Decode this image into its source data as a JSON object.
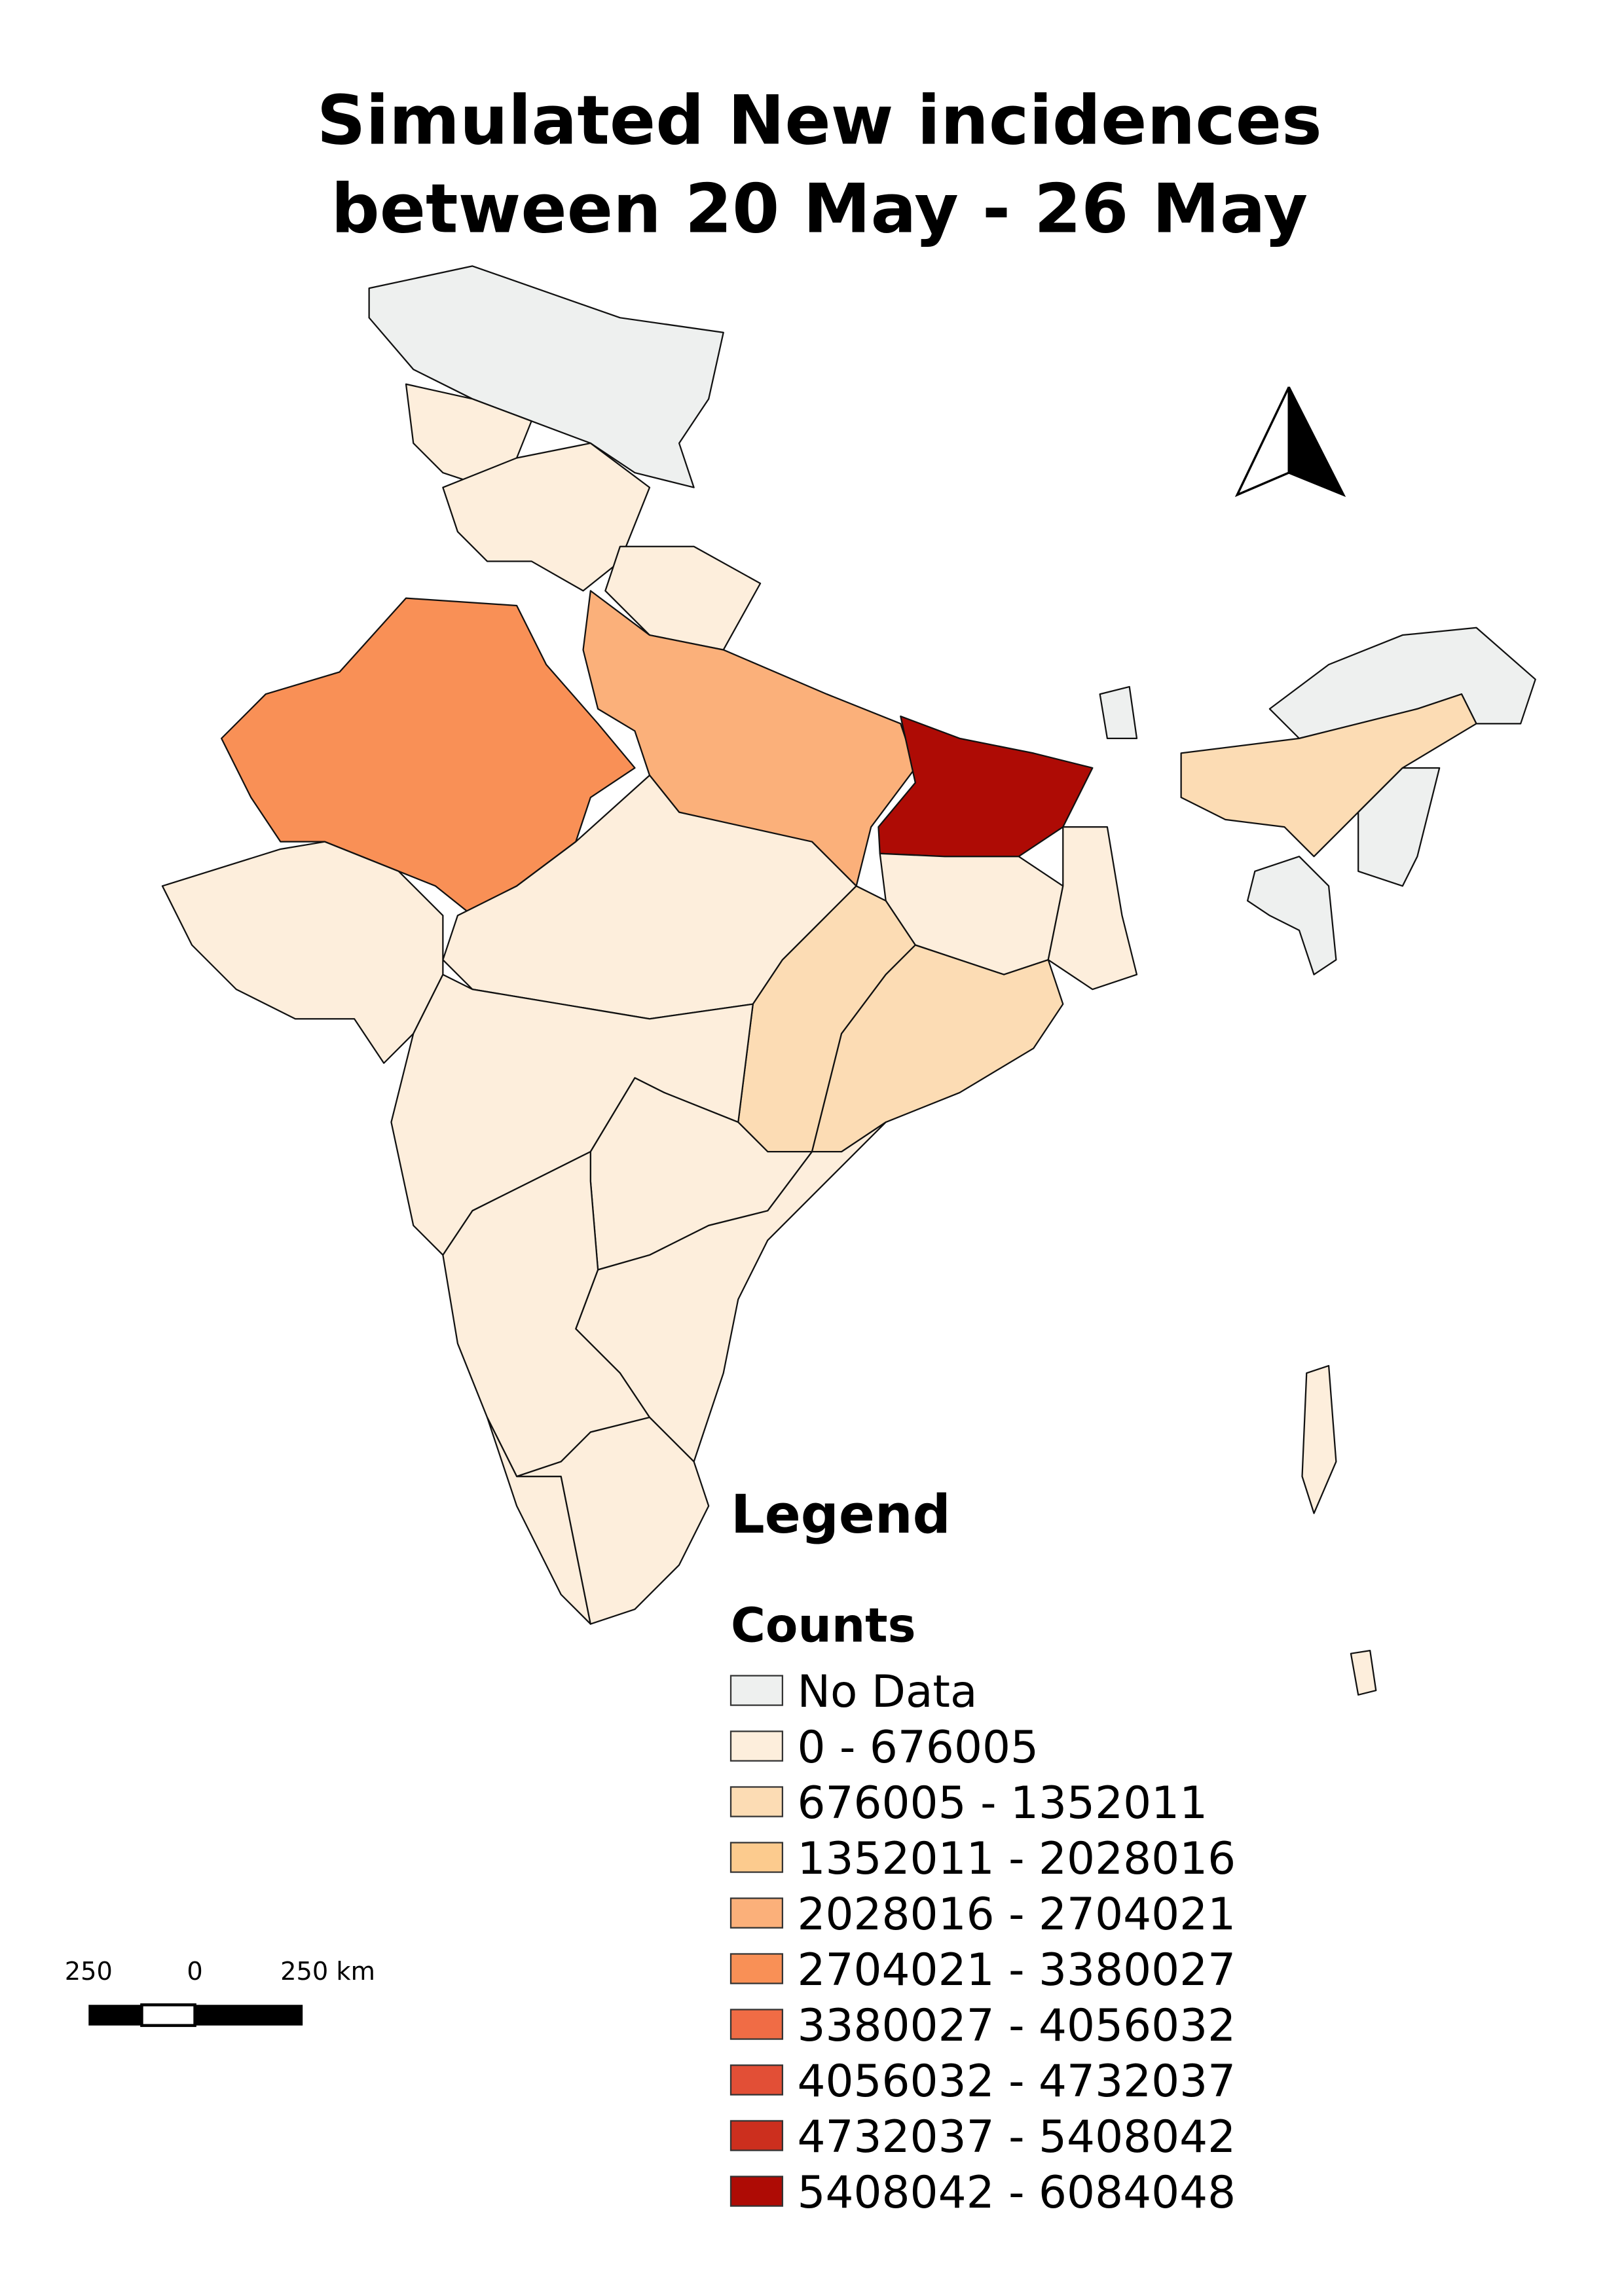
{
  "title_lines": [
    "Simulated New incidences",
    "between 20 May - 26 May"
  ],
  "legend": {
    "title": "Legend",
    "subtitle": "Counts",
    "items": [
      {
        "label": "No Data",
        "color": "#eef0ef"
      },
      {
        "label": " 0 - 676005",
        "color": "#fdeedc"
      },
      {
        "label": "676005 - 1352011",
        "color": "#fcdcb4"
      },
      {
        "label": "1352011 - 2028016",
        "color": "#fccb8e"
      },
      {
        "label": "2028016 - 2704021",
        "color": "#fbb07a"
      },
      {
        "label": "2704021 - 3380027",
        "color": "#f99056"
      },
      {
        "label": "3380027 - 4056032",
        "color": "#f06c45"
      },
      {
        "label": "4056032 - 4732037",
        "color": "#e24f36"
      },
      {
        "label": "4732037 - 5408042",
        "color": "#cc2f1e"
      },
      {
        "label": "5408042 - 6084048",
        "color": "#ae0b05"
      }
    ]
  },
  "scale_bar": {
    "labels": [
      "250",
      "0",
      "250 km"
    ]
  }
}
